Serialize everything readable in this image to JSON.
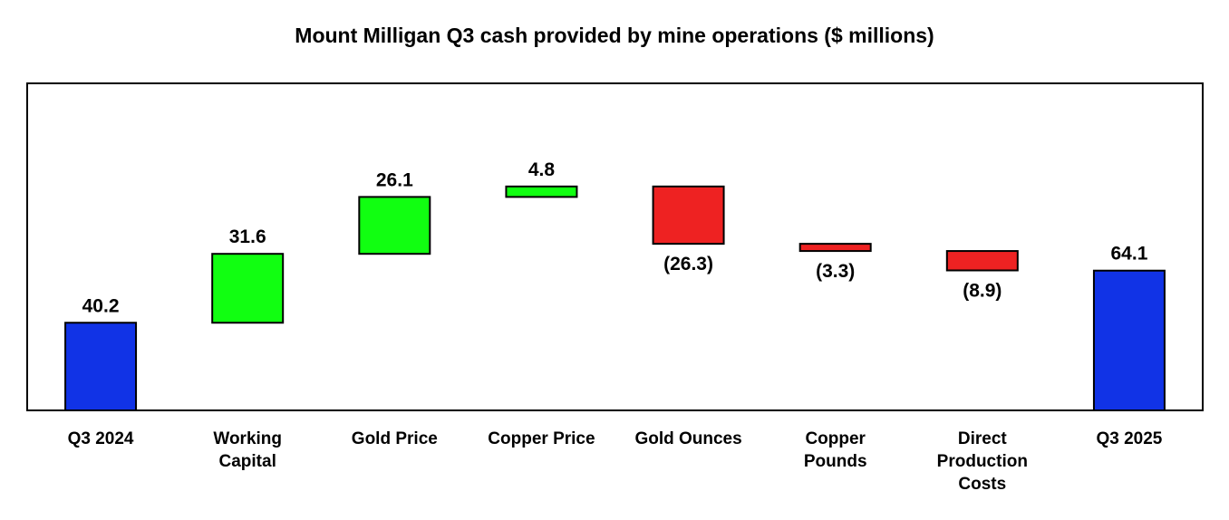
{
  "chart_data": {
    "type": "waterfall",
    "title": "Mount Milligan Q3 cash provided by mine operations ($ millions)",
    "xlabel": "",
    "ylabel": "",
    "grid": false,
    "legend": "none",
    "categories": [
      [
        "Q3 2024"
      ],
      [
        "Working",
        "Capital"
      ],
      [
        "Gold Price"
      ],
      [
        "Copper Price"
      ],
      [
        "Gold Ounces"
      ],
      [
        "Copper",
        "Pounds"
      ],
      [
        "Direct",
        "Production",
        "Costs"
      ],
      [
        "Q3 2025"
      ]
    ],
    "values": [
      40.2,
      31.6,
      26.1,
      4.8,
      -26.3,
      -3.3,
      -8.9,
      64.1
    ],
    "value_labels": [
      "40.2",
      "31.6",
      "26.1",
      "4.8",
      "(26.3)",
      "(3.3)",
      "(8.9)",
      "64.1"
    ],
    "bar_kinds": [
      "total",
      "increase",
      "increase",
      "increase",
      "decrease",
      "decrease",
      "decrease",
      "total"
    ],
    "ylim": [
      0,
      150
    ],
    "colors": {
      "total": "#1133e6",
      "increase": "#11ff11",
      "decrease": "#ee2222"
    }
  }
}
